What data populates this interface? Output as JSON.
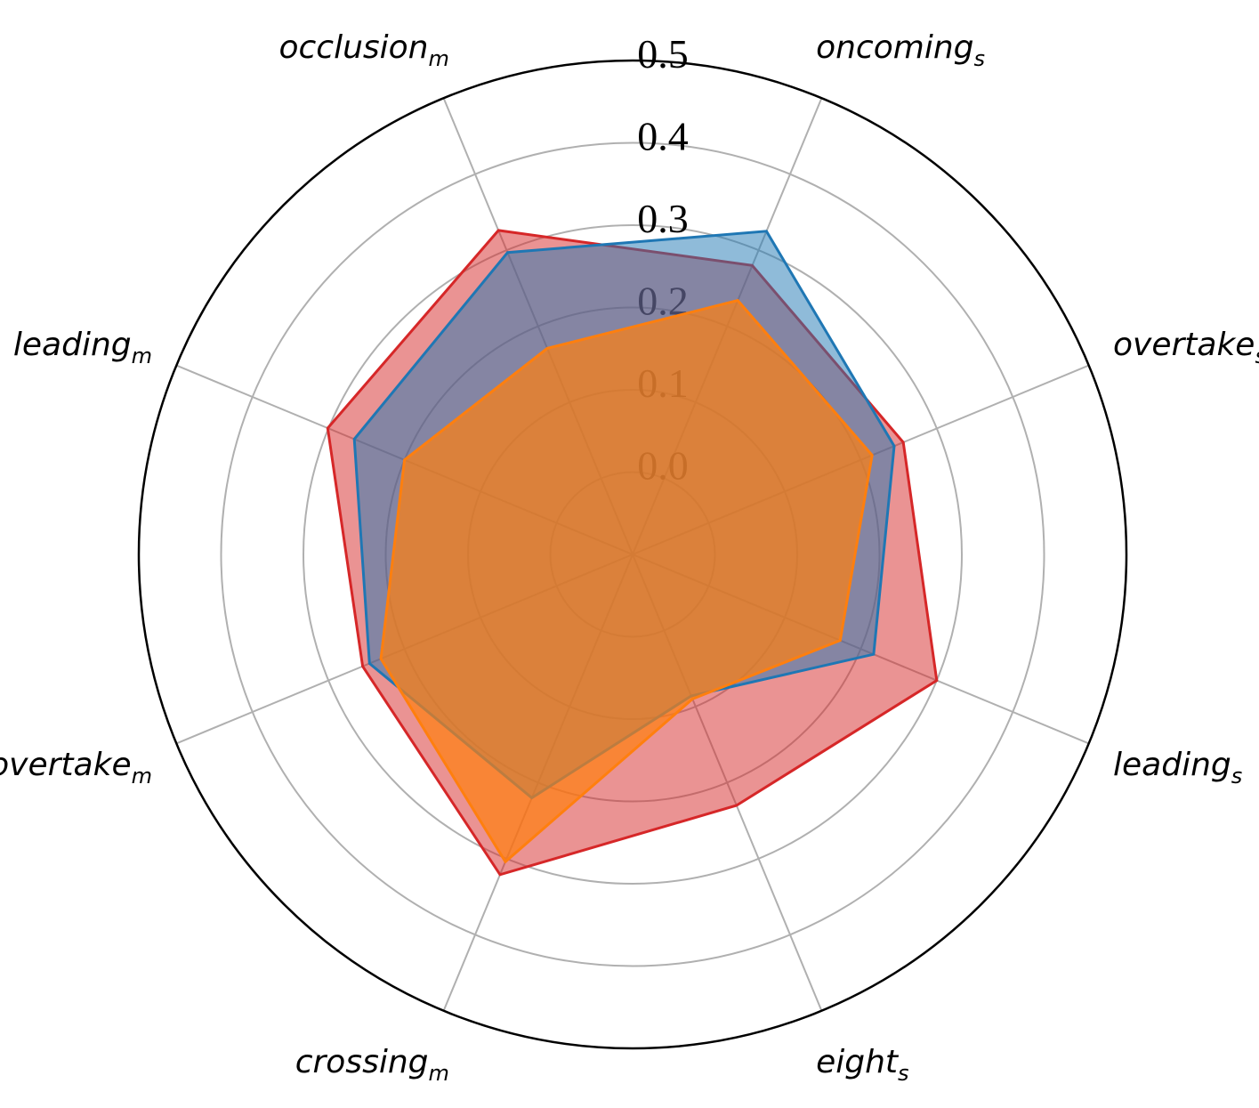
{
  "chart_data": {
    "type": "radar",
    "categories": [
      {
        "base": "oncoming",
        "sub": "s"
      },
      {
        "base": "overtake",
        "sub": "s"
      },
      {
        "base": "leading",
        "sub": "s"
      },
      {
        "base": "eight",
        "sub": "s"
      },
      {
        "base": "crossing",
        "sub": "m"
      },
      {
        "base": "overtake",
        "sub": "m"
      },
      {
        "base": "leading",
        "sub": "m"
      },
      {
        "base": "occlusion",
        "sub": "m"
      }
    ],
    "r_ticks": [
      "0.0",
      "0.1",
      "0.2",
      "0.3",
      "0.4",
      "0.5"
    ],
    "r_min": -0.1,
    "r_max": 0.5,
    "grid": true,
    "series": [
      {
        "color": "#d62728",
        "fill_opacity": 0.5,
        "values": [
          0.28,
          0.256,
          0.3,
          0.23,
          0.321,
          0.255,
          0.301,
          0.326
        ]
      },
      {
        "color": "#1f77b4",
        "fill_opacity": 0.5,
        "values": [
          0.325,
          0.244,
          0.217,
          0.086,
          0.22,
          0.246,
          0.266,
          0.297
        ]
      },
      {
        "color": "#ff7f0e",
        "fill_opacity": 0.7,
        "values": [
          0.234,
          0.215,
          0.173,
          0.09,
          0.304,
          0.231,
          0.2,
          0.171
        ]
      }
    ]
  }
}
